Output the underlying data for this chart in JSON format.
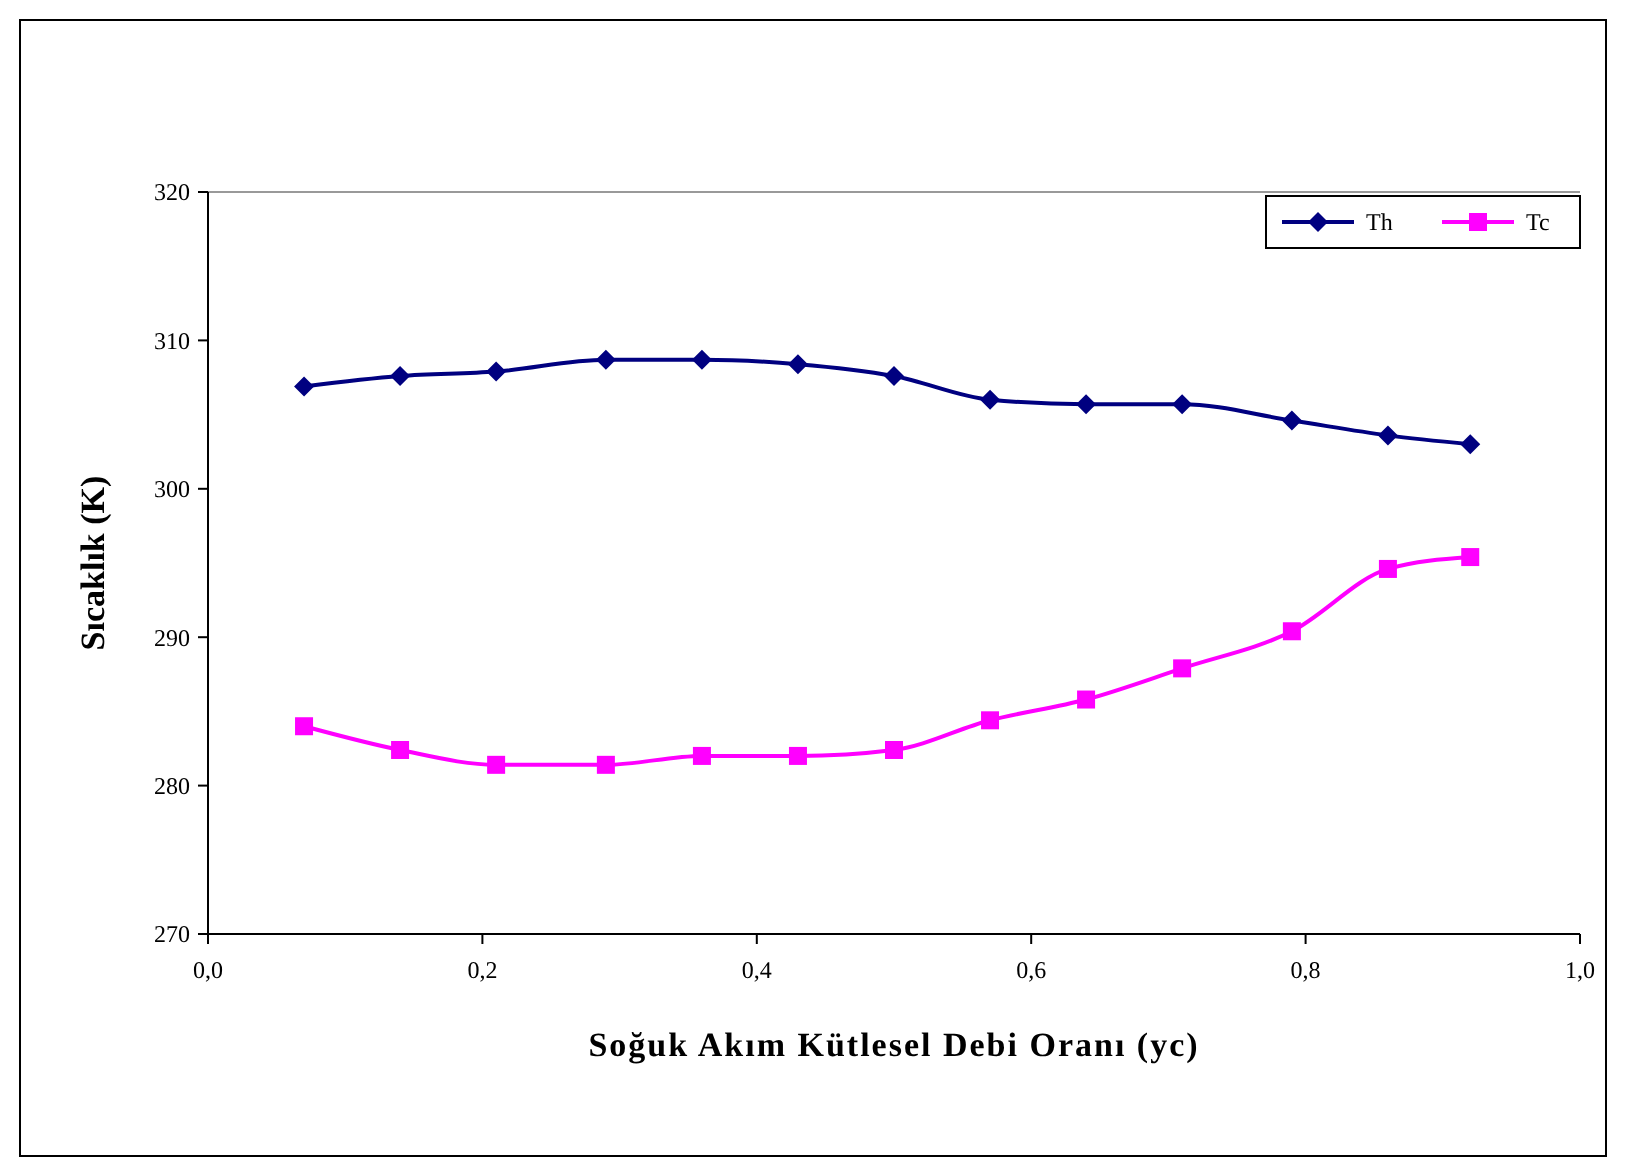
{
  "chart_data": {
    "type": "line",
    "xlabel": "Soğuk Akım Kütlesel Debi Oranı (yc)",
    "ylabel": "Sıcaklık (K)",
    "x": [
      0.07,
      0.14,
      0.21,
      0.29,
      0.36,
      0.43,
      0.5,
      0.57,
      0.64,
      0.71,
      0.79,
      0.86,
      0.92
    ],
    "series": [
      {
        "name": "Th",
        "color": "#000080",
        "marker": "diamond",
        "values": [
          306.9,
          307.6,
          307.9,
          308.7,
          308.7,
          308.4,
          307.6,
          306,
          305.7,
          305.7,
          304.6,
          303.6,
          303
        ]
      },
      {
        "name": "Tc",
        "color": "#ff00ff",
        "marker": "square",
        "values": [
          284,
          282.4,
          281.4,
          281.4,
          282,
          282,
          282.4,
          284.4,
          285.8,
          287.9,
          290.4,
          294.6,
          295.4
        ]
      }
    ],
    "xlim": [
      0,
      1
    ],
    "xticks": [
      {
        "value": 0,
        "label": "0,0"
      },
      {
        "value": 0.2,
        "label": "0,2"
      },
      {
        "value": 0.4,
        "label": "0,4"
      },
      {
        "value": 0.6,
        "label": "0,6"
      },
      {
        "value": 0.8,
        "label": "0,8"
      },
      {
        "value": 1,
        "label": "1,0"
      }
    ],
    "ylim": [
      270,
      320
    ],
    "yticks": [
      270,
      280,
      290,
      300,
      310,
      320
    ],
    "legend": "top right",
    "line_style": "solid"
  }
}
